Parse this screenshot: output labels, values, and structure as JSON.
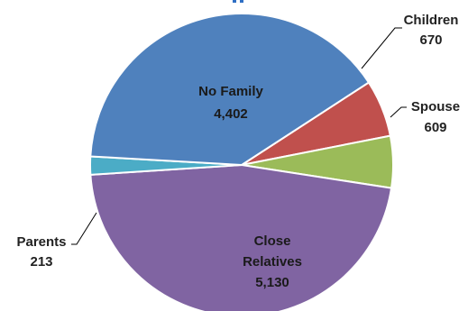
{
  "chart_data": {
    "type": "pie",
    "start_angle_deg": 57,
    "direction": "clockwise",
    "slices": [
      {
        "name": "Children",
        "value": 670,
        "value_label": "670",
        "color": "#c0504d",
        "label_position": "outside"
      },
      {
        "name": "Spouse",
        "value": 609,
        "value_label": "609",
        "color": "#9bbb59",
        "label_position": "outside"
      },
      {
        "name": "Close Relatives",
        "value": 5130,
        "value_label": "5,130",
        "color": "#8064a2",
        "label_position": "inside"
      },
      {
        "name": "Parents",
        "value": 213,
        "value_label": "213",
        "color": "#4bacc6",
        "label_position": "outside"
      },
      {
        "name": "No Family",
        "value": 4402,
        "value_label": "4,402",
        "color": "#4f81bd",
        "label_position": "inside"
      }
    ]
  }
}
